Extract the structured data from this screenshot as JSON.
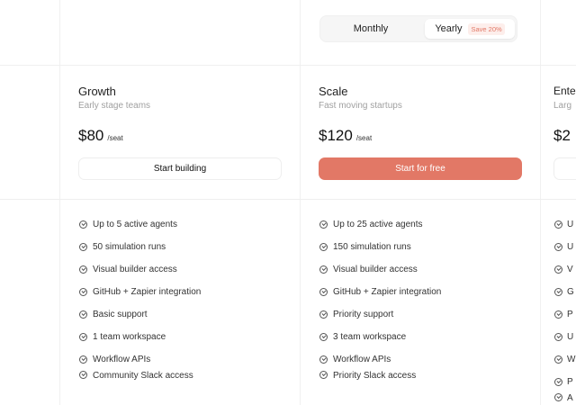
{
  "billing_toggle": {
    "monthly": "Monthly",
    "yearly": "Yearly",
    "yearly_badge": "Save 20%",
    "selected": "Yearly"
  },
  "plans": [
    {
      "name": "Growth",
      "tagline": "Early stage teams",
      "price": "$80",
      "per": "/seat",
      "cta": "Start building",
      "features": [
        "Up to 5 active agents",
        "50 simulation runs",
        "Visual builder access",
        "GitHub + Zapier integration",
        "Basic support",
        "1 team workspace",
        "Workflow APIs",
        "Community Slack access"
      ]
    },
    {
      "name": "Scale",
      "tagline": "Fast moving startups",
      "price": "$120",
      "per": "/seat",
      "cta": "Start for free",
      "features": [
        "Up to 25 active agents",
        "150 simulation runs",
        "Visual builder access",
        "GitHub + Zapier integration",
        "Priority support",
        "3 team workspace",
        "Workflow APIs",
        "Priority Slack access"
      ]
    },
    {
      "name": "Ente",
      "tagline": "Larg",
      "price": "$2",
      "per": "",
      "cta": "",
      "features": [
        "U",
        "U",
        "V",
        "G",
        "P",
        "U",
        "W",
        "P",
        "A"
      ]
    }
  ],
  "colors": {
    "accent": "#e27866"
  }
}
